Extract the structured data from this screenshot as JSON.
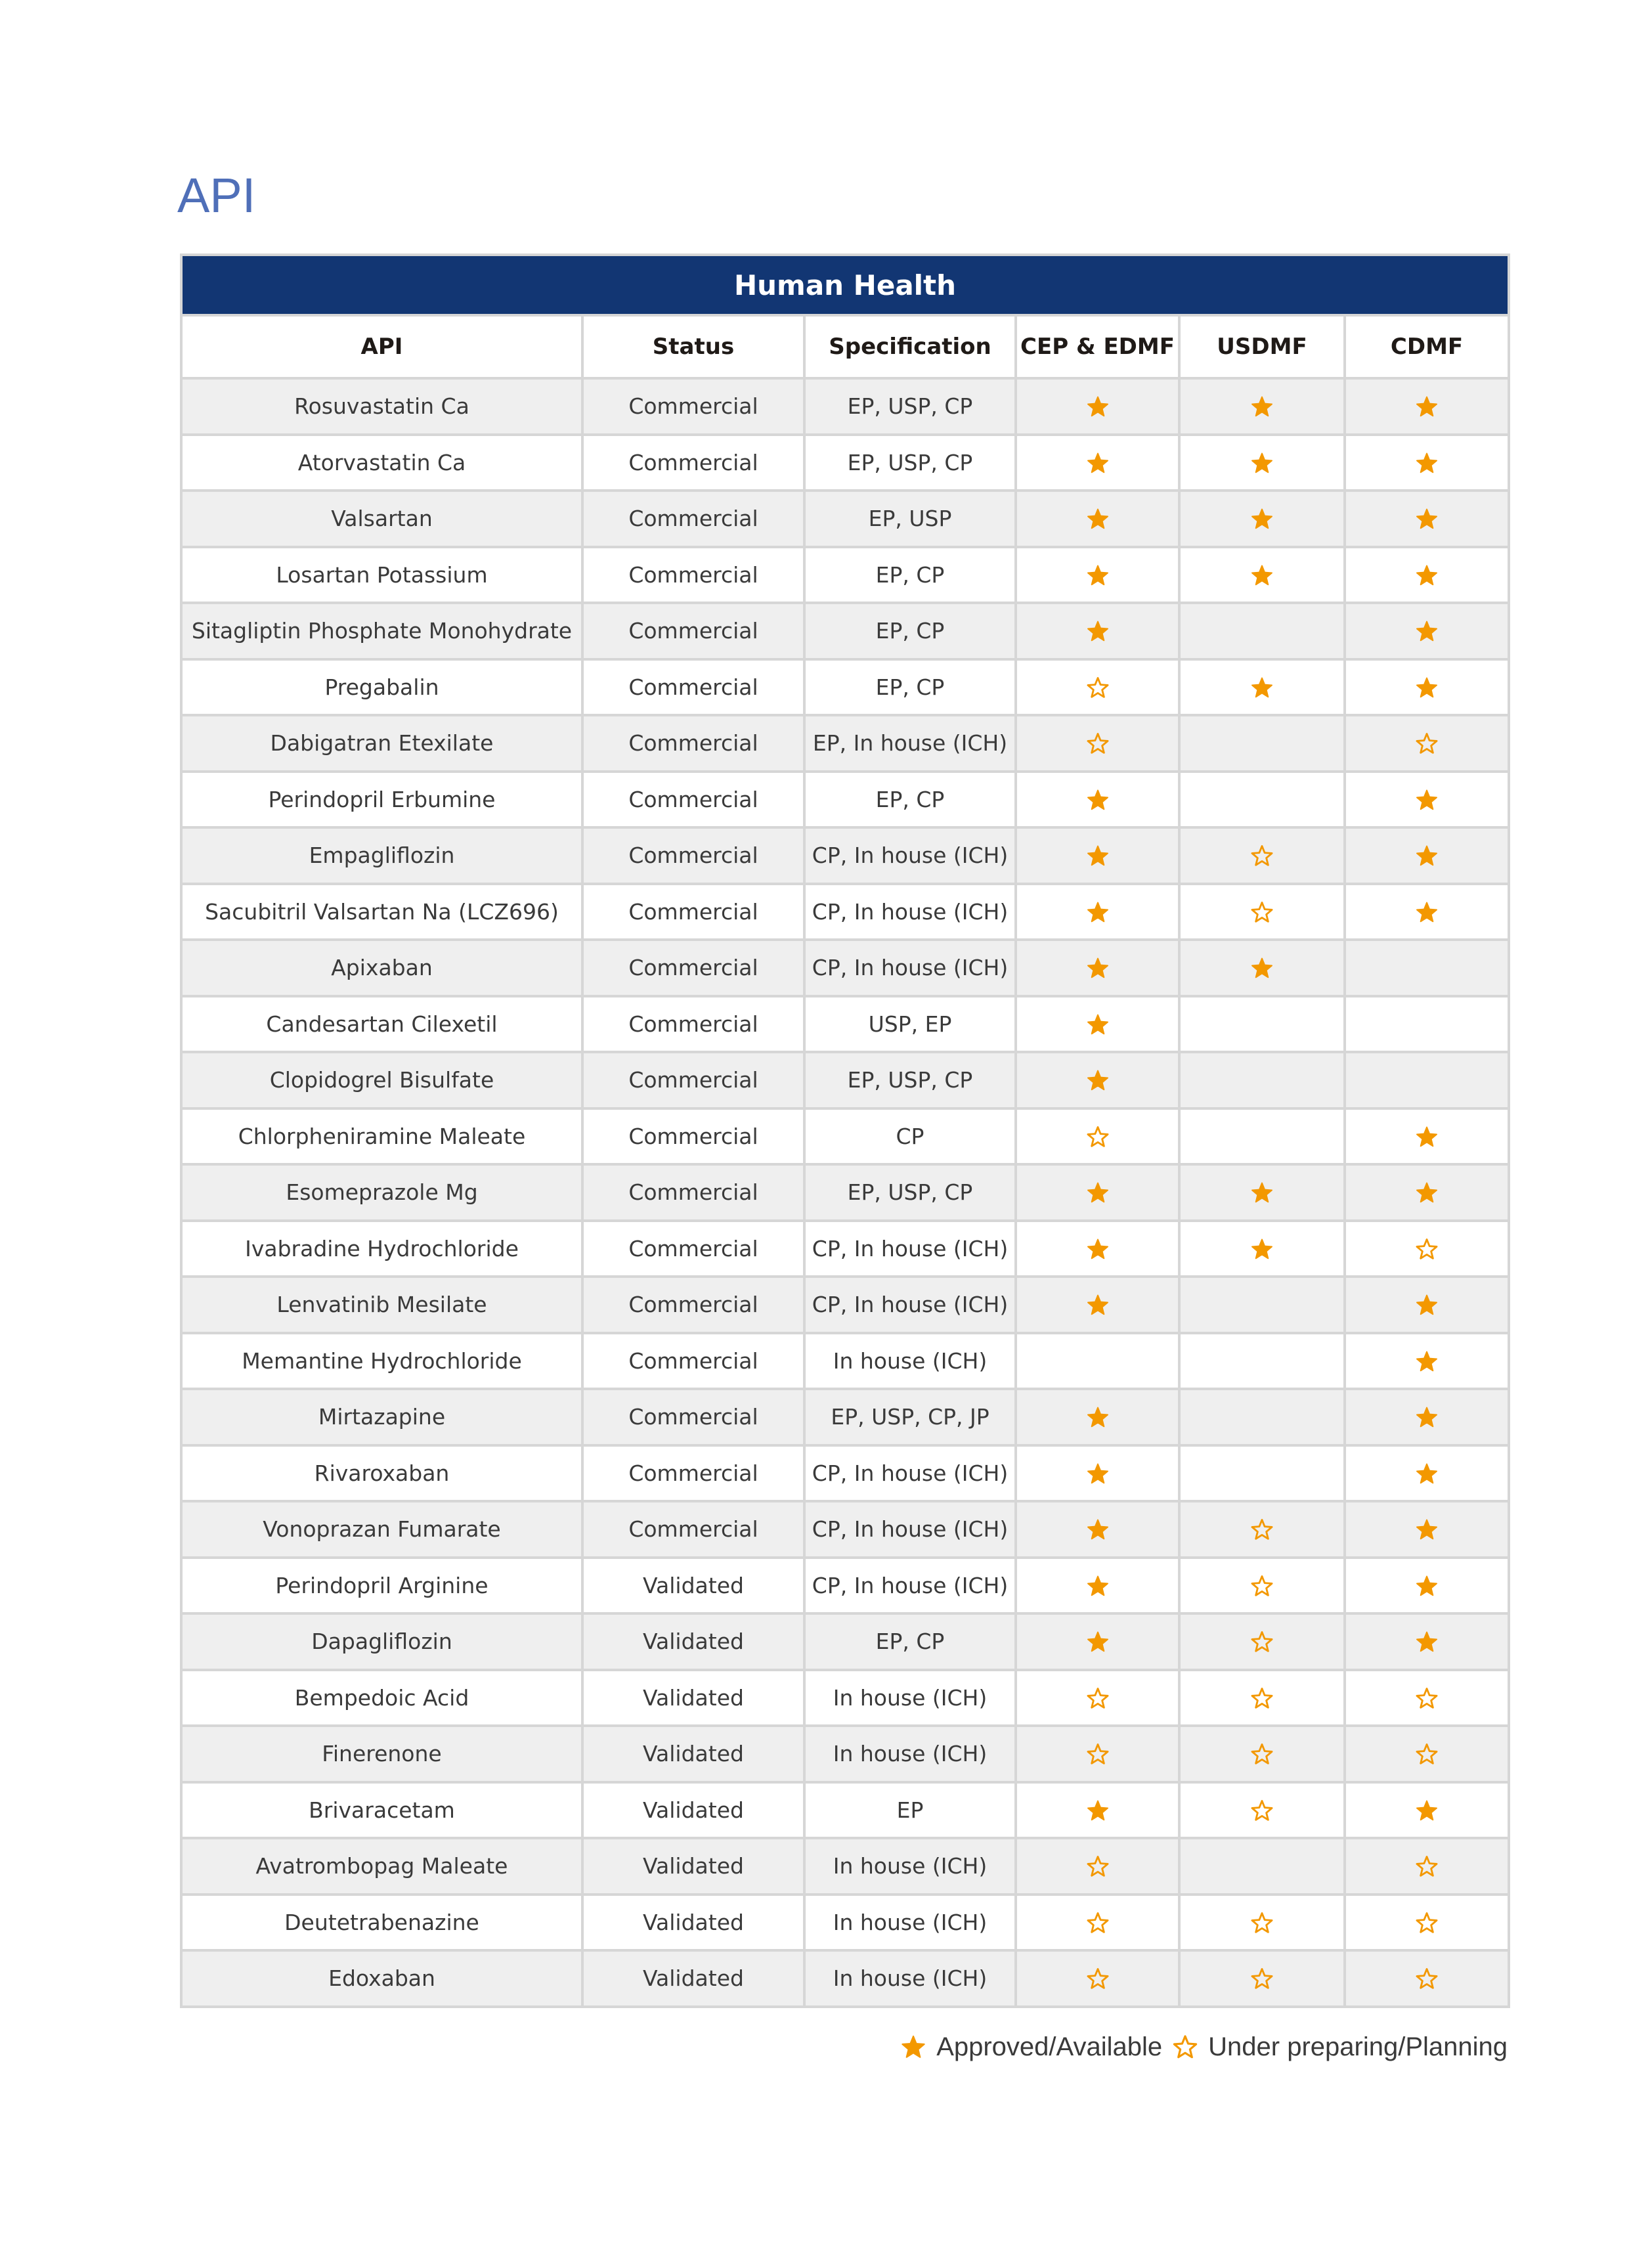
{
  "page_title": "API",
  "table": {
    "section_title": "Human Health",
    "columns": [
      "API",
      "Status",
      "Specification",
      "CEP & EDMF",
      "USDMF",
      "CDMF"
    ],
    "rows": [
      {
        "api": "Rosuvastatin Ca",
        "status": "Commercial",
        "spec": "EP, USP, CP",
        "cep": "approved",
        "usdmf": "approved",
        "cdmf": "approved"
      },
      {
        "api": "Atorvastatin Ca",
        "status": "Commercial",
        "spec": "EP, USP, CP",
        "cep": "approved",
        "usdmf": "approved",
        "cdmf": "approved"
      },
      {
        "api": "Valsartan",
        "status": "Commercial",
        "spec": "EP, USP",
        "cep": "approved",
        "usdmf": "approved",
        "cdmf": "approved"
      },
      {
        "api": "Losartan Potassium",
        "status": "Commercial",
        "spec": "EP, CP",
        "cep": "approved",
        "usdmf": "approved",
        "cdmf": "approved"
      },
      {
        "api": "Sitagliptin Phosphate Monohydrate",
        "status": "Commercial",
        "spec": "EP, CP",
        "cep": "approved",
        "usdmf": "",
        "cdmf": "approved"
      },
      {
        "api": "Pregabalin",
        "status": "Commercial",
        "spec": "EP, CP",
        "cep": "planning",
        "usdmf": "approved",
        "cdmf": "approved"
      },
      {
        "api": "Dabigatran Etexilate",
        "status": "Commercial",
        "spec": "EP, In house (ICH)",
        "cep": "planning",
        "usdmf": "",
        "cdmf": "planning"
      },
      {
        "api": "Perindopril Erbumine",
        "status": "Commercial",
        "spec": "EP, CP",
        "cep": "approved",
        "usdmf": "",
        "cdmf": "approved"
      },
      {
        "api": "Empagliflozin",
        "status": "Commercial",
        "spec": "CP, In house (ICH)",
        "cep": "approved",
        "usdmf": "planning",
        "cdmf": "approved"
      },
      {
        "api": "Sacubitril Valsartan Na (LCZ696)",
        "status": "Commercial",
        "spec": "CP, In house (ICH)",
        "cep": "approved",
        "usdmf": "planning",
        "cdmf": "approved"
      },
      {
        "api": "Apixaban",
        "status": "Commercial",
        "spec": "CP, In house (ICH)",
        "cep": "approved",
        "usdmf": "approved",
        "cdmf": ""
      },
      {
        "api": "Candesartan Cilexetil",
        "status": "Commercial",
        "spec": "USP, EP",
        "cep": "approved",
        "usdmf": "",
        "cdmf": ""
      },
      {
        "api": "Clopidogrel Bisulfate",
        "status": "Commercial",
        "spec": "EP, USP, CP",
        "cep": "approved",
        "usdmf": "",
        "cdmf": ""
      },
      {
        "api": "Chlorpheniramine Maleate",
        "status": "Commercial",
        "spec": "CP",
        "cep": "planning",
        "usdmf": "",
        "cdmf": "approved"
      },
      {
        "api": "Esomeprazole Mg",
        "status": "Commercial",
        "spec": "EP, USP, CP",
        "cep": "approved",
        "usdmf": "approved",
        "cdmf": "approved"
      },
      {
        "api": "Ivabradine Hydrochloride",
        "status": "Commercial",
        "spec": "CP, In house (ICH)",
        "cep": "approved",
        "usdmf": "approved",
        "cdmf": "planning"
      },
      {
        "api": "Lenvatinib Mesilate",
        "status": "Commercial",
        "spec": "CP, In house (ICH)",
        "cep": "approved",
        "usdmf": "",
        "cdmf": "approved"
      },
      {
        "api": "Memantine Hydrochloride",
        "status": "Commercial",
        "spec": "In house (ICH)",
        "cep": "",
        "usdmf": "",
        "cdmf": "approved"
      },
      {
        "api": "Mirtazapine",
        "status": "Commercial",
        "spec": "EP, USP, CP, JP",
        "cep": "approved",
        "usdmf": "",
        "cdmf": "approved"
      },
      {
        "api": "Rivaroxaban",
        "status": "Commercial",
        "spec": "CP, In house (ICH)",
        "cep": "approved",
        "usdmf": "",
        "cdmf": "approved"
      },
      {
        "api": "Vonoprazan Fumarate",
        "status": "Commercial",
        "spec": "CP, In house (ICH)",
        "cep": "approved",
        "usdmf": "planning",
        "cdmf": "approved"
      },
      {
        "api": "Perindopril Arginine",
        "status": "Validated",
        "spec": "CP, In house (ICH)",
        "cep": "approved",
        "usdmf": "planning",
        "cdmf": "approved"
      },
      {
        "api": "Dapagliflozin",
        "status": "Validated",
        "spec": "EP, CP",
        "cep": "approved",
        "usdmf": "planning",
        "cdmf": "approved"
      },
      {
        "api": "Bempedoic Acid",
        "status": "Validated",
        "spec": "In house (ICH)",
        "cep": "planning",
        "usdmf": "planning",
        "cdmf": "planning"
      },
      {
        "api": "Finerenone",
        "status": "Validated",
        "spec": "In house (ICH)",
        "cep": "planning",
        "usdmf": "planning",
        "cdmf": "planning"
      },
      {
        "api": "Brivaracetam",
        "status": "Validated",
        "spec": "EP",
        "cep": "approved",
        "usdmf": "planning",
        "cdmf": "approved"
      },
      {
        "api": "Avatrombopag Maleate",
        "status": "Validated",
        "spec": "In house (ICH)",
        "cep": "planning",
        "usdmf": "",
        "cdmf": "planning"
      },
      {
        "api": "Deutetrabenazine",
        "status": "Validated",
        "spec": "In house (ICH)",
        "cep": "planning",
        "usdmf": "planning",
        "cdmf": "planning"
      },
      {
        "api": "Edoxaban",
        "status": "Validated",
        "spec": "In house (ICH)",
        "cep": "planning",
        "usdmf": "planning",
        "cdmf": "planning"
      }
    ]
  },
  "legend": {
    "approved_label": "Approved/Available",
    "planning_label": "Under preparing/Planning",
    "approved_icon": "filled-star-icon",
    "planning_icon": "outline-star-icon"
  },
  "colors": {
    "banner": "#123673",
    "title": "#4f6fb8",
    "star": "#f39800"
  }
}
